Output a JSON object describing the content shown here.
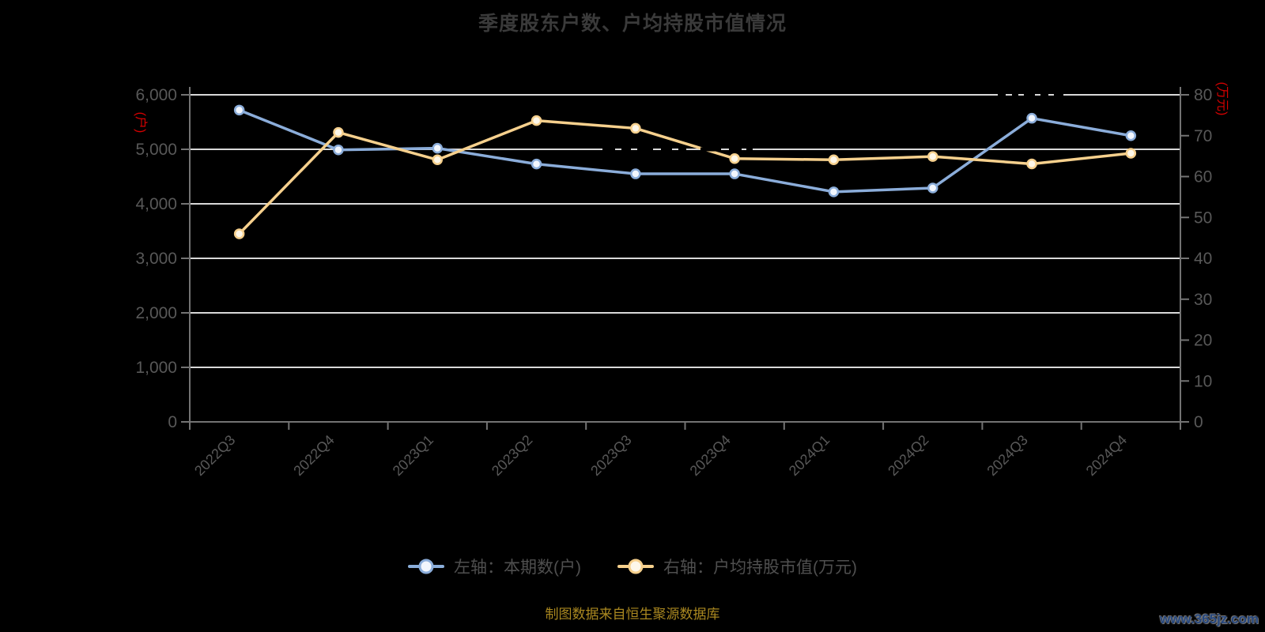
{
  "title": "季度股东户数、户均持股市值情况",
  "chart_data": {
    "type": "line",
    "categories": [
      "2022Q3",
      "2022Q4",
      "2023Q1",
      "2023Q2",
      "2023Q3",
      "2023Q4",
      "2024Q1",
      "2024Q2",
      "2024Q3",
      "2024Q4"
    ],
    "series": [
      {
        "name": "左轴：本期数(户)",
        "axis": "left",
        "color": "#8badda",
        "marker_fill": "#f2f6fd",
        "values": [
          5720,
          4990,
          5020,
          4730,
          4550,
          4550,
          4220,
          4290,
          5570,
          5250
        ]
      },
      {
        "name": "右轴：户均持股市值(万元)",
        "axis": "right",
        "color": "#f6d08d",
        "marker_fill": "#fdf7e9",
        "values": [
          46,
          70.8,
          64.1,
          73.7,
          71.8,
          64.4,
          64.1,
          64.9,
          63.1,
          65.7
        ]
      }
    ],
    "left_axis": {
      "name": "(户)",
      "min": 0,
      "max": 6000,
      "step": 1000
    },
    "right_axis": {
      "name": "(万元)",
      "min": 0,
      "max": 80,
      "step": 10
    },
    "grid": true,
    "legend_position": "bottom",
    "x_label_rotate": 45
  },
  "footer": {
    "source_note": "制图数据来自恒生聚源数据库",
    "watermark": "www.365jz.com"
  },
  "colors": {
    "background": "#000000",
    "title": "#3a3a3a",
    "axis_label": "#585858",
    "axis_line": "#737373",
    "grid_line": "#d9d9d9",
    "axis_name": "#d60000",
    "legend_text": "#4f4f4f",
    "source_note": "#aa8820",
    "watermark": "#26477e"
  }
}
